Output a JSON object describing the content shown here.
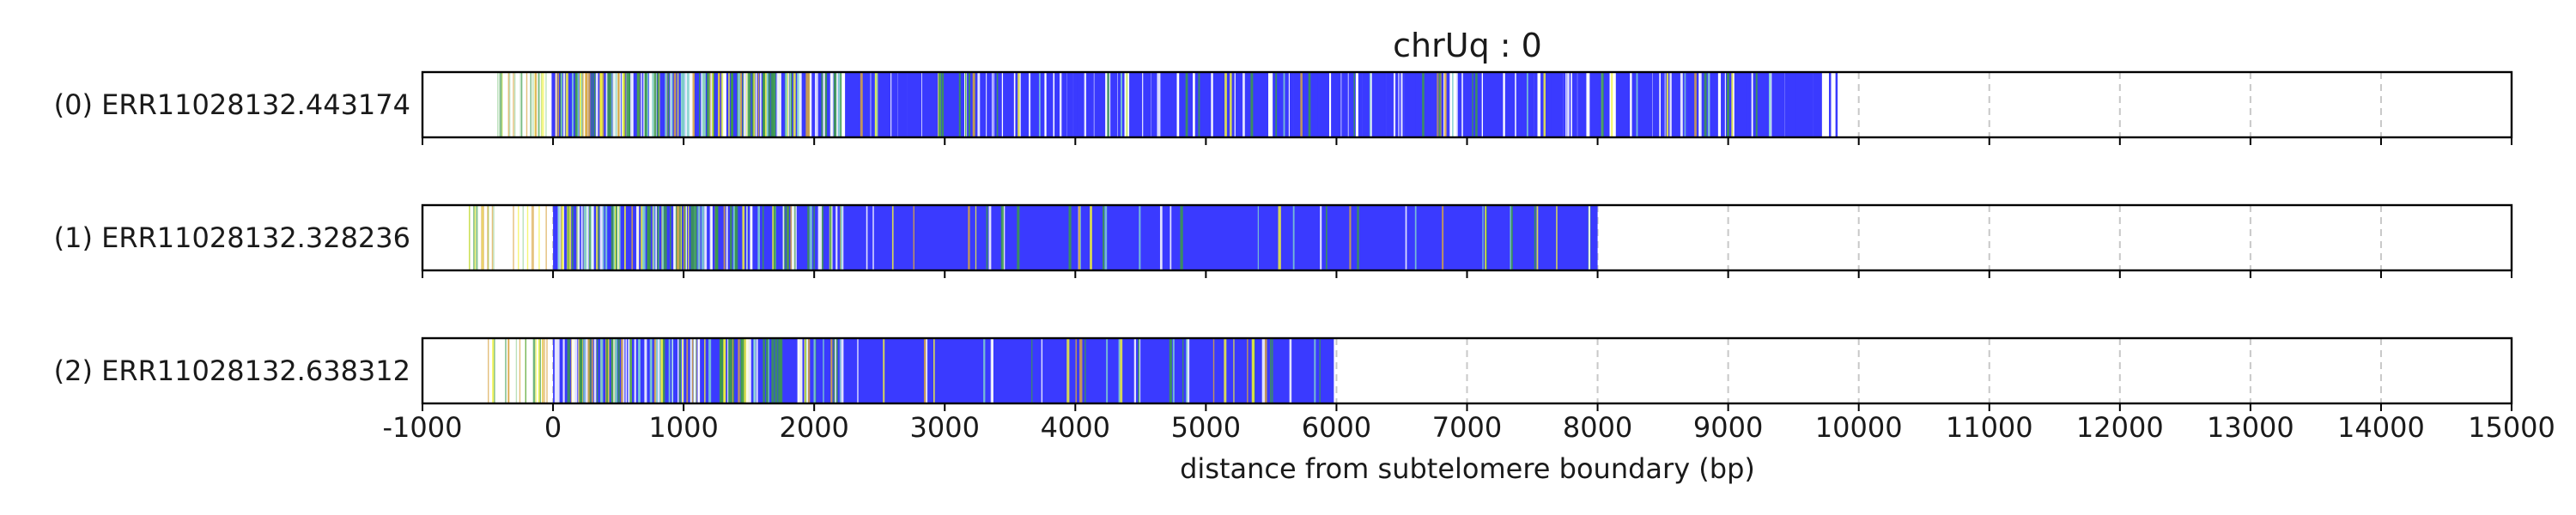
{
  "chart_data": {
    "type": "heatmap",
    "title": "chrUq : 0",
    "xlabel": "distance from subtelomere boundary (bp)",
    "xlim": [
      -1000,
      15000
    ],
    "xticks": [
      -1000,
      0,
      1000,
      2000,
      3000,
      4000,
      5000,
      6000,
      7000,
      8000,
      9000,
      10000,
      11000,
      12000,
      13000,
      14000,
      15000
    ],
    "xtick_labels": [
      "-1000",
      "0",
      "1000",
      "2000",
      "3000",
      "4000",
      "5000",
      "6000",
      "7000",
      "8000",
      "9000",
      "10000",
      "11000",
      "12000",
      "13000",
      "14000",
      "15000"
    ],
    "grid": "vertical dashed gray lines at each x tick",
    "colors": {
      "repeat": "#3a3aff",
      "variant_green": "#3c9a4a",
      "variant_yellow": "#f2f23a",
      "variant_cyan": "#7fd0d0",
      "variant_tan": "#d9a441",
      "variant_lightgreen": "#9ed49e",
      "grid": "#c8c8c8"
    },
    "series": [
      {
        "name": "(0) ERR11028132.443174",
        "repeat_start": 0,
        "repeat_end": 9700,
        "read_start": -450,
        "density": "dense with many gaps",
        "tail_marks": [
          9780,
          9830
        ]
      },
      {
        "name": "(1) ERR11028132.328236",
        "repeat_start": 0,
        "repeat_end": 8000,
        "read_start": -650,
        "density": "mostly solid",
        "tail_marks": []
      },
      {
        "name": "(2) ERR11028132.638312",
        "repeat_start": 0,
        "repeat_end": 5980,
        "read_start": -500,
        "density": "mostly solid",
        "tail_marks": []
      }
    ]
  }
}
